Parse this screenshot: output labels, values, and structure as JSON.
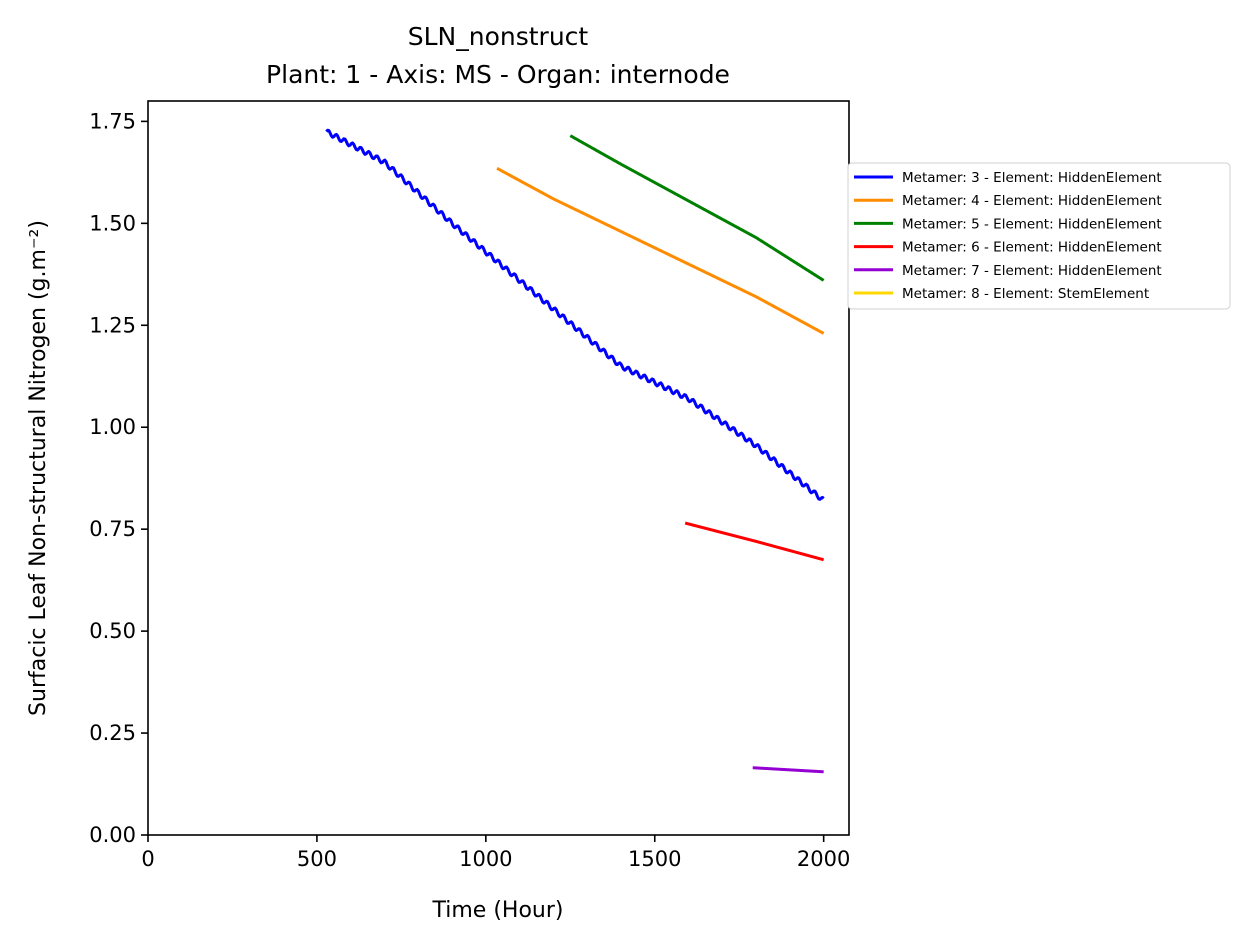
{
  "chart_data": {
    "type": "line",
    "title": "SLN_nonstruct",
    "subtitle": "Plant: 1 - Axis: MS - Organ: internode",
    "xlabel": "Time (Hour)",
    "ylabel": "Surfacic Leaf Non-structural Nitrogen (g.m⁻²)",
    "xlim": [
      0,
      2075
    ],
    "ylim": [
      0,
      1.8
    ],
    "xticks": [
      0,
      500,
      1000,
      1500,
      2000
    ],
    "xtick_labels": [
      "0",
      "500",
      "1000",
      "1500",
      "2000"
    ],
    "yticks": [
      0,
      0.25,
      0.5,
      0.75,
      1.0,
      1.25,
      1.5,
      1.75
    ],
    "ytick_labels": [
      "0.00",
      "0.25",
      "0.50",
      "0.75",
      "1.00",
      "1.25",
      "1.50",
      "1.75"
    ],
    "grid": false,
    "legend_position": "outside-right",
    "series": [
      {
        "name": "Metamer: 3 - Element: HiddenElement",
        "color": "#0000ff",
        "wavy": true,
        "x": [
          528,
          700,
          900,
          1000,
          1200,
          1400,
          1600,
          1800,
          2000
        ],
        "y": [
          1.725,
          1.65,
          1.5,
          1.43,
          1.29,
          1.15,
          1.07,
          0.955,
          0.82
        ]
      },
      {
        "name": "Metamer: 4 - Element: HiddenElement",
        "color": "#ff8c00",
        "wavy": false,
        "x": [
          1033,
          1200,
          1400,
          1600,
          1800,
          2000
        ],
        "y": [
          1.635,
          1.56,
          1.48,
          1.4,
          1.32,
          1.23
        ]
      },
      {
        "name": "Metamer: 5 - Element: HiddenElement",
        "color": "#008000",
        "wavy": false,
        "x": [
          1250,
          1400,
          1600,
          1800,
          2000
        ],
        "y": [
          1.715,
          1.645,
          1.555,
          1.465,
          1.36
        ]
      },
      {
        "name": "Metamer: 6 - Element: HiddenElement",
        "color": "#ff0000",
        "wavy": false,
        "x": [
          1590,
          1800,
          2000
        ],
        "y": [
          0.765,
          0.72,
          0.675
        ]
      },
      {
        "name": "Metamer: 7 - Element: HiddenElement",
        "color": "#9400d3",
        "wavy": false,
        "x": [
          1790,
          2000
        ],
        "y": [
          0.165,
          0.155
        ]
      },
      {
        "name": "Metamer: 8 - Element: StemElement",
        "color": "#ffd700",
        "wavy": false,
        "x": [],
        "y": []
      }
    ]
  }
}
